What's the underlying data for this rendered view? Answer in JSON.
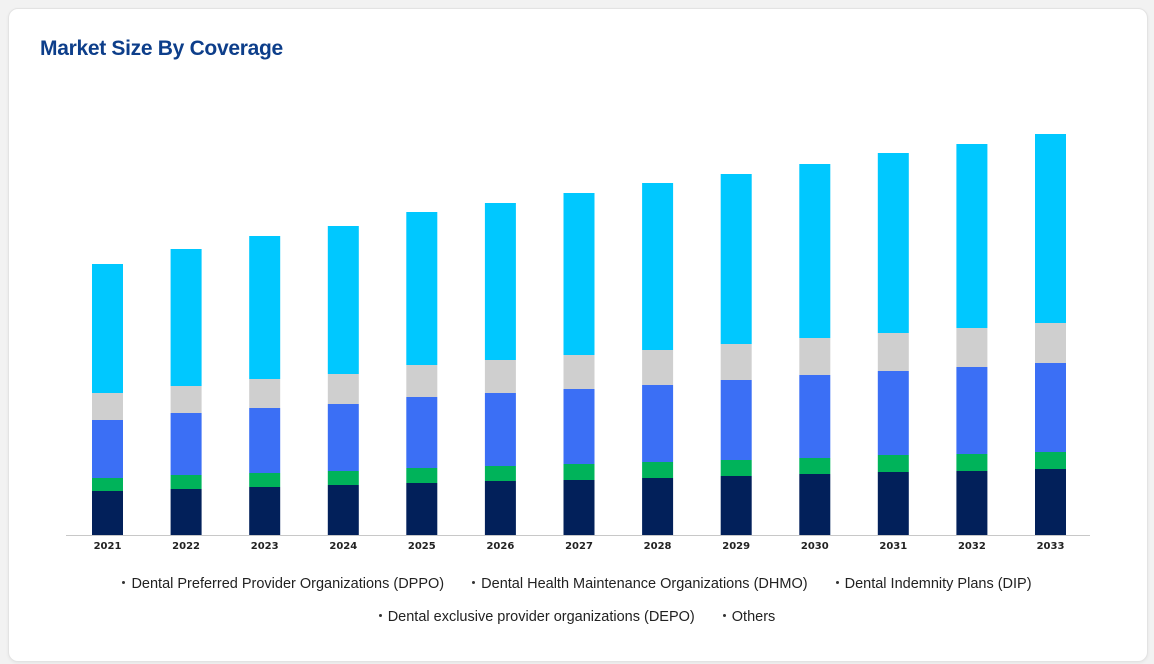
{
  "page": {
    "title": "Market Size By Coverage",
    "title_color": "#0d3e8a"
  },
  "chart_data": {
    "type": "bar",
    "stacked": true,
    "title": "Market Size By Coverage",
    "xlabel": "",
    "ylabel": "",
    "grid": false,
    "legend_position": "bottom",
    "categories": [
      "2021",
      "2022",
      "2023",
      "2024",
      "2025",
      "2026",
      "2027",
      "2028",
      "2029",
      "2030",
      "2031",
      "2032",
      "2033"
    ],
    "ylim": [
      0,
      400
    ],
    "series": [
      {
        "name": "Dental Preferred Provider Organizations (DPPO)",
        "color": "#00c8ff",
        "values": [
          129,
          137,
          143,
          148,
          153,
          157,
          162,
          167,
          170,
          174,
          180,
          184,
          189
        ]
      },
      {
        "name": "Dental Health Maintenance Organizations (DHMO)",
        "color": "#cfcfcf",
        "values": [
          27,
          27,
          29,
          30,
          32,
          33,
          34,
          35,
          36,
          37,
          38,
          39,
          40
        ]
      },
      {
        "name": "Dental Indemnity Plans (DIP)",
        "color": "#3b6ff5",
        "values": [
          58,
          62,
          65,
          67,
          71,
          73,
          75,
          77,
          80,
          83,
          84,
          87,
          89
        ]
      },
      {
        "name": "Dental exclusive provider organizations (DEPO)",
        "color": "#00b35a",
        "values": [
          13,
          14,
          14,
          14,
          15,
          15,
          16,
          16,
          16,
          16,
          17,
          17,
          17
        ]
      },
      {
        "name": "Others",
        "color": "#02205a",
        "values": [
          44,
          46,
          48,
          50,
          52,
          54,
          55,
          57,
          59,
          61,
          63,
          64,
          66
        ]
      }
    ]
  },
  "legend": {
    "items": [
      "Dental Preferred Provider Organizations (DPPO)",
      "Dental Health Maintenance Organizations (DHMO)",
      "Dental Indemnity Plans (DIP)",
      "Dental exclusive provider organizations (DEPO)",
      "Others"
    ]
  }
}
